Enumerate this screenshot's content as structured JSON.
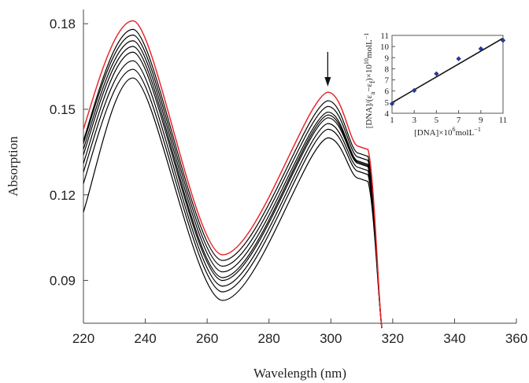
{
  "chart_data": [
    {
      "type": "line",
      "title": "",
      "xlabel": "Wavelength (nm)",
      "ylabel": "Absorption",
      "xlim": [
        220,
        360
      ],
      "ylim": [
        0.075,
        0.185
      ],
      "xticks": [
        220,
        240,
        260,
        280,
        300,
        320,
        340,
        360
      ],
      "yticks": [
        0.09,
        0.12,
        0.15,
        0.18
      ],
      "ytick_labels": [
        "0.09",
        "0.12",
        "0.15",
        "0.18"
      ],
      "grid": false,
      "annotation": "arrow at 299 nm pointing down (absorbance decreases with added DNA)",
      "series": [
        {
          "color": "#e8282b",
          "values": [
            0.143,
            0.181,
            0.099,
            0.156
          ]
        },
        {
          "color": "#000000",
          "values": [
            0.139,
            0.178,
            0.097,
            0.153
          ]
        },
        {
          "color": "#000000",
          "values": [
            0.138,
            0.176,
            0.095,
            0.151
          ]
        },
        {
          "color": "#000000",
          "values": [
            0.136,
            0.174,
            0.093,
            0.149
          ]
        },
        {
          "color": "#000000",
          "values": [
            0.134,
            0.172,
            0.091,
            0.148
          ]
        },
        {
          "color": "#000000",
          "values": [
            0.131,
            0.17,
            0.09,
            0.147
          ]
        },
        {
          "color": "#000000",
          "values": [
            0.128,
            0.167,
            0.088,
            0.145
          ]
        },
        {
          "color": "#000000",
          "values": [
            0.124,
            0.164,
            0.086,
            0.143
          ]
        },
        {
          "color": "#000000",
          "values": [
            0.114,
            0.161,
            0.083,
            0.14
          ]
        }
      ],
      "key_wavelengths": [
        220,
        236,
        265,
        299
      ]
    },
    {
      "type": "scatter",
      "title": "",
      "xlabel_parts": [
        "[DNA]×10",
        "6",
        "molL",
        "−1"
      ],
      "ylabel_parts": [
        "[DNA]/(ε",
        "a",
        "−ε",
        "f",
        ")×10",
        "10",
        "molL",
        "−1"
      ],
      "xlim": [
        1,
        11
      ],
      "ylim": [
        4,
        11
      ],
      "xticks": [
        1,
        3,
        5,
        7,
        9,
        11
      ],
      "yticks": [
        4,
        5,
        6,
        7,
        8,
        9,
        10,
        11
      ],
      "points_x": [
        1,
        3,
        5,
        7,
        9,
        11
      ],
      "points_y": [
        4.85,
        6.05,
        7.55,
        8.9,
        9.8,
        10.55
      ],
      "fit_line": [
        [
          1,
          4.95
        ],
        [
          11,
          10.75
        ]
      ],
      "point_color": "#2a3a9a"
    }
  ]
}
